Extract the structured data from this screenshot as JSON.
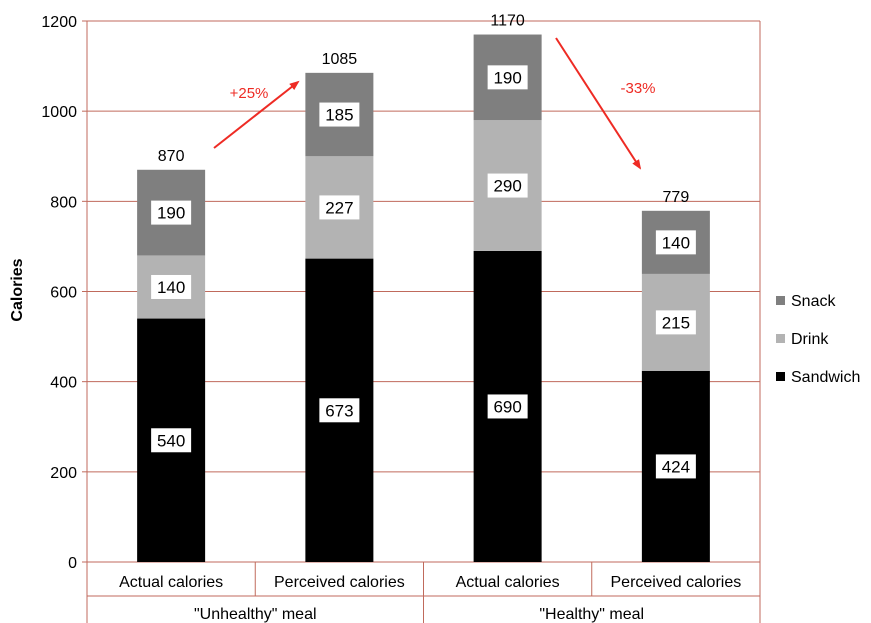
{
  "chart_data": {
    "type": "bar",
    "stacked": true,
    "title": "",
    "ylabel": "Calories",
    "ylim": [
      0,
      1200
    ],
    "yticks": [
      0,
      200,
      400,
      600,
      800,
      1000,
      1200
    ],
    "grid": true,
    "legend_position": "right",
    "categories": [
      "Actual calories",
      "Perceived calories",
      "Actual calories",
      "Perceived calories"
    ],
    "groups": [
      {
        "label": "\"Unhealthy\" meal",
        "span": [
          0,
          1
        ]
      },
      {
        "label": "\"Healthy\" meal",
        "span": [
          2,
          3
        ]
      }
    ],
    "series": [
      {
        "name": "Sandwich",
        "color": "#000000",
        "values": [
          540,
          673,
          690,
          424
        ]
      },
      {
        "name": "Drink",
        "color": "#b3b3b3",
        "values": [
          140,
          227,
          290,
          215
        ]
      },
      {
        "name": "Snack",
        "color": "#7f7f7f",
        "values": [
          190,
          185,
          190,
          140
        ]
      }
    ],
    "totals": [
      "870",
      "1085",
      "1170",
      "779"
    ],
    "annotations": [
      {
        "text": "+25%",
        "color": "#ee2b24",
        "from_category": 0,
        "to_category": 1
      },
      {
        "text": "-33%",
        "color": "#ee2b24",
        "from_category": 2,
        "to_category": 3
      }
    ]
  }
}
